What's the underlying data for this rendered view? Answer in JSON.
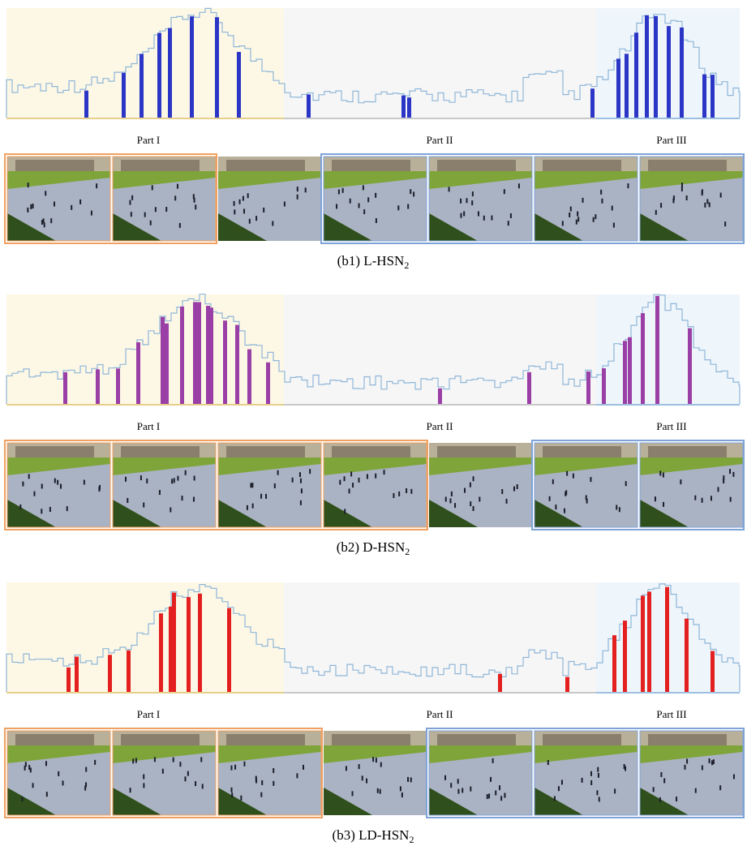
{
  "panels": [
    {
      "parts": [
        "Part I",
        "Part II",
        "Part III"
      ],
      "caption": {
        "text": "(b1) L-HSN",
        "subscript": "2"
      }
    },
    {
      "parts": [
        "Part I",
        "Part II",
        "Part III"
      ],
      "caption": {
        "text": "(b2) D-HSN",
        "subscript": "2"
      }
    },
    {
      "parts": [
        "Part I",
        "Part II",
        "Part III"
      ],
      "caption": {
        "text": "(b3) LD-HSN",
        "subscript": "2"
      }
    }
  ]
}
